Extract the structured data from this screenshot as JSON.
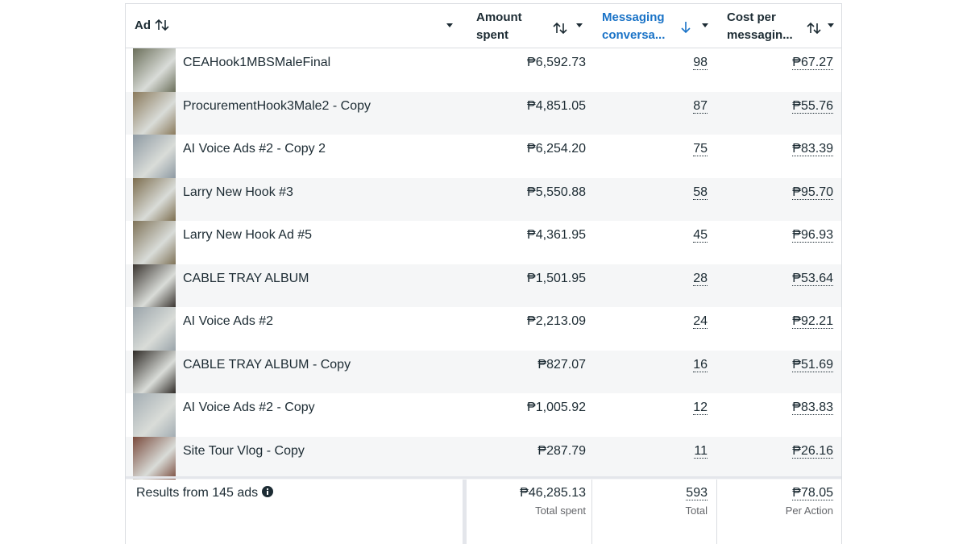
{
  "table": {
    "headers": [
      "Ad",
      "Amount spent",
      "Messaging conversa...",
      "Cost per messagin..."
    ],
    "rows": [
      [
        "CEAHook1MBSMaleFinal",
        "₱6,592.73",
        "98",
        "₱67.27"
      ],
      [
        "ProcurementHook3Male2 - Copy",
        "₱4,851.05",
        "87",
        "₱55.76"
      ],
      [
        "AI Voice Ads #2 - Copy 2",
        "₱6,254.20",
        "75",
        "₱83.39"
      ],
      [
        "Larry New Hook #3",
        "₱5,550.88",
        "58",
        "₱95.70"
      ],
      [
        "Larry New Hook Ad #5",
        "₱4,361.95",
        "45",
        "₱96.93"
      ],
      [
        "CABLE TRAY ALBUM",
        "₱1,501.95",
        "28",
        "₱53.64"
      ],
      [
        "AI Voice Ads #2",
        "₱2,213.09",
        "24",
        "₱92.21"
      ],
      [
        "CABLE TRAY ALBUM - Copy",
        "₱827.07",
        "16",
        "₱51.69"
      ],
      [
        "AI Voice Ads #2 - Copy",
        "₱1,005.92",
        "12",
        "₱83.83"
      ],
      [
        "Site Tour Vlog - Copy",
        "₱287.79",
        "11",
        "₱26.16"
      ]
    ],
    "footer": {
      "label": "Results from 145 ads",
      "amount": "₱46,285.13",
      "amount_note": "Total spent",
      "messaging": "593",
      "messaging_note": "Total",
      "cost": "₱78.05",
      "cost_note": "Per Action"
    }
  }
}
